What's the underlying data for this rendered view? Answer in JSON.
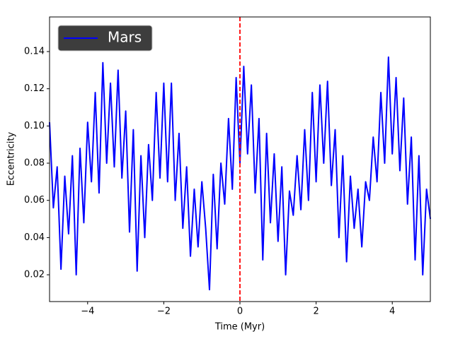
{
  "chart_data": {
    "type": "line",
    "xlabel": "Time (Myr)",
    "ylabel": "Eccentricity",
    "xlim": [
      -5,
      5
    ],
    "ylim": [
      0.0056,
      0.1586
    ],
    "xticks": [
      {
        "value": -4,
        "label": "−4"
      },
      {
        "value": -2,
        "label": "−2"
      },
      0,
      2,
      4
    ],
    "yticks": [
      {
        "value": 0.02,
        "label": "0.02"
      },
      {
        "value": 0.04,
        "label": "0.04"
      },
      {
        "value": 0.06,
        "label": "0.06"
      },
      {
        "value": 0.08,
        "label": "0.08"
      },
      {
        "value": 0.1,
        "label": "0.10"
      },
      {
        "value": 0.12,
        "label": "0.12"
      },
      {
        "value": 0.14,
        "label": "0.14"
      }
    ],
    "legend": "upper left",
    "vline": {
      "x": 0,
      "color": "#ff0000"
    },
    "x": [
      -5.0,
      -4.9,
      -4.8,
      -4.7,
      -4.6,
      -4.5,
      -4.4,
      -4.3,
      -4.2,
      -4.1,
      -4.0,
      -3.9,
      -3.8,
      -3.7,
      -3.6,
      -3.5,
      -3.4,
      -3.3,
      -3.2,
      -3.1,
      -3.0,
      -2.9,
      -2.8,
      -2.7,
      -2.6,
      -2.5,
      -2.4,
      -2.3,
      -2.2,
      -2.1,
      -2.0,
      -1.9,
      -1.8,
      -1.7,
      -1.6,
      -1.5,
      -1.4,
      -1.3,
      -1.2,
      -1.1,
      -1.0,
      -0.9,
      -0.8,
      -0.7,
      -0.6,
      -0.5,
      -0.4,
      -0.3,
      -0.2,
      -0.1,
      0.0,
      0.1,
      0.2,
      0.3,
      0.4,
      0.5,
      0.6,
      0.7,
      0.8,
      0.9,
      1.0,
      1.1,
      1.2,
      1.3,
      1.4,
      1.5,
      1.6,
      1.7,
      1.8,
      1.9,
      2.0,
      2.1,
      2.2,
      2.3,
      2.4,
      2.5,
      2.6,
      2.7,
      2.8,
      2.9,
      3.0,
      3.1,
      3.2,
      3.3,
      3.4,
      3.5,
      3.6,
      3.7,
      3.8,
      3.9,
      4.0,
      4.1,
      4.2,
      4.3,
      4.4,
      4.5,
      4.6,
      4.7,
      4.8,
      4.9,
      5.0
    ],
    "series": [
      {
        "name": "Mars",
        "color": "#0000ff",
        "values": [
          0.102,
          0.056,
          0.078,
          0.023,
          0.073,
          0.042,
          0.084,
          0.02,
          0.088,
          0.048,
          0.102,
          0.07,
          0.118,
          0.064,
          0.134,
          0.08,
          0.123,
          0.078,
          0.13,
          0.072,
          0.108,
          0.043,
          0.098,
          0.022,
          0.084,
          0.04,
          0.09,
          0.06,
          0.118,
          0.072,
          0.123,
          0.07,
          0.123,
          0.06,
          0.096,
          0.045,
          0.078,
          0.03,
          0.066,
          0.035,
          0.07,
          0.045,
          0.012,
          0.074,
          0.034,
          0.08,
          0.058,
          0.104,
          0.066,
          0.126,
          0.08,
          0.132,
          0.085,
          0.122,
          0.064,
          0.104,
          0.028,
          0.096,
          0.048,
          0.085,
          0.038,
          0.078,
          0.02,
          0.065,
          0.052,
          0.084,
          0.055,
          0.098,
          0.06,
          0.118,
          0.07,
          0.122,
          0.08,
          0.124,
          0.068,
          0.098,
          0.04,
          0.084,
          0.027,
          0.073,
          0.045,
          0.066,
          0.035,
          0.07,
          0.06,
          0.094,
          0.07,
          0.118,
          0.08,
          0.137,
          0.085,
          0.126,
          0.076,
          0.115,
          0.058,
          0.094,
          0.028,
          0.084,
          0.02,
          0.066,
          0.05
        ]
      }
    ]
  }
}
